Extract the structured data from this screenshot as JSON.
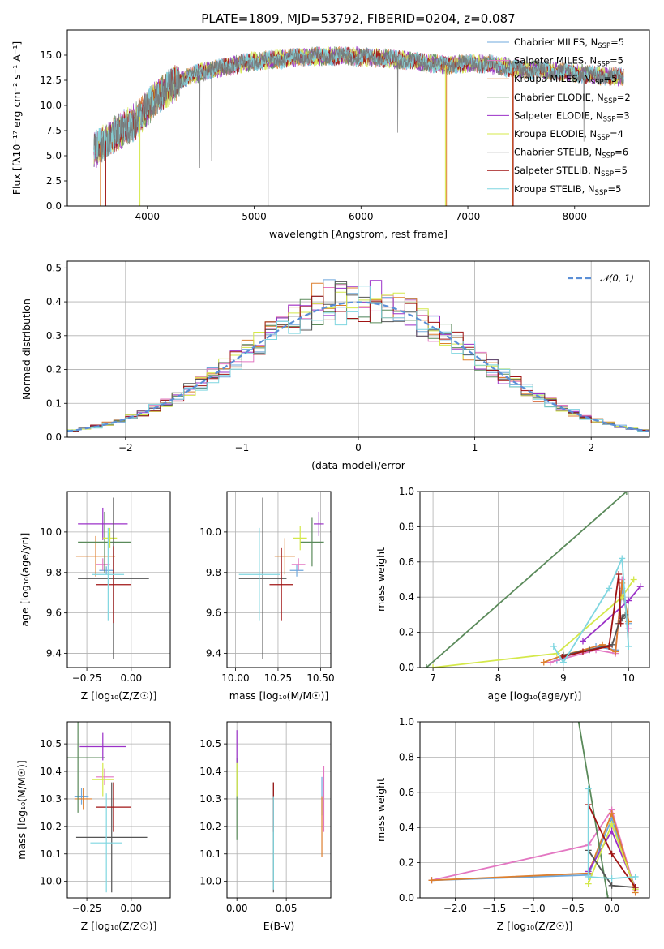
{
  "colors": {
    "Chabrier MILES": "#6fa8dc",
    "Salpeter MILES": "#e377c2",
    "Kroupa MILES": "#dd7f2e",
    "Chabrier ELODIE": "#5a8a5a",
    "Salpeter ELODIE": "#9b30c8",
    "Kroupa ELODIE": "#d4e84a",
    "Chabrier STELIB": "#555555",
    "Salpeter STELIB": "#a01414",
    "Kroupa STELIB": "#7fd6e0",
    "gaussian": "#5b8fd6"
  },
  "chart_data": [
    {
      "id": "spectrum",
      "type": "line",
      "title": "PLATE=1809, MJD=53792, FIBERID=0204, z=0.087",
      "xlabel": "wavelength [Angstrom, rest frame]",
      "ylabel": "Flux [fλ10⁻¹⁷ erg cm⁻² s⁻¹ A⁻¹]",
      "xlim": [
        3250,
        8700
      ],
      "ylim": [
        0,
        17.5
      ],
      "xticks": [
        "4000",
        "5000",
        "6000",
        "7000",
        "8000"
      ],
      "yticks": [
        "0.0",
        "2.5",
        "5.0",
        "7.5",
        "10.0",
        "12.5",
        "15.0"
      ],
      "continuum_x": [
        3500,
        3700,
        3900,
        4100,
        4300,
        4500,
        4800,
        5000,
        5300,
        5600,
        5900,
        6200,
        6500,
        6800,
        7000,
        7200,
        7500,
        7800,
        8000,
        8200,
        8500
      ],
      "continuum_y": [
        5.5,
        7.2,
        8.5,
        11.0,
        12.5,
        13.3,
        14.0,
        14.4,
        14.7,
        14.9,
        14.9,
        14.7,
        14.4,
        14.0,
        14.2,
        14.1,
        13.6,
        13.4,
        13.2,
        13.0,
        12.8
      ],
      "legend": [
        {
          "label": "Chabrier MILES, N",
          "sub": "SSP",
          "n": "=5"
        },
        {
          "label": "Salpeter MILES, N",
          "sub": "SSP",
          "n": "=5"
        },
        {
          "label": "Kroupa MILES, N",
          "sub": "SSP",
          "n": "=5"
        },
        {
          "label": "Chabrier ELODIE, N",
          "sub": "SSP",
          "n": "=2"
        },
        {
          "label": "Salpeter ELODIE, N",
          "sub": "SSP",
          "n": "=3"
        },
        {
          "label": "Kroupa ELODIE, N",
          "sub": "SSP",
          "n": "=4"
        },
        {
          "label": "Chabrier STELIB, N",
          "sub": "SSP",
          "n": "=6"
        },
        {
          "label": "Salpeter STELIB, N",
          "sub": "SSP",
          "n": "=5"
        },
        {
          "label": "Kroupa STELIB, N",
          "sub": "SSP",
          "n": "=5"
        }
      ],
      "legend_placement": "right"
    },
    {
      "id": "residuals",
      "type": "histogram",
      "xlabel": "(data-model)/error",
      "ylabel": "Normed distribution",
      "xlim": [
        -2.5,
        2.5
      ],
      "ylim": [
        0,
        0.52
      ],
      "xticks": [
        "−2",
        "−1",
        "0",
        "1",
        "2"
      ],
      "yticks": [
        "0.0",
        "0.1",
        "0.2",
        "0.3",
        "0.4",
        "0.5"
      ],
      "bin_width": 0.1,
      "legend": "𝒩(0, 1)",
      "grid": true
    },
    {
      "id": "age_vs_Z",
      "type": "errorbar",
      "xlabel": "Z [log₁₀(Z/Z☉)]",
      "ylabel": "age  [log₁₀(age/yr)]",
      "xlim": [
        -0.36,
        0.22
      ],
      "ylim": [
        9.33,
        10.2
      ],
      "xticks": [
        "−0.25",
        "0.00"
      ],
      "yticks": [
        "9.4",
        "9.6",
        "9.8",
        "10.0"
      ],
      "points": [
        {
          "model": "Chabrier MILES",
          "x": -0.14,
          "y": 9.81,
          "xe": 0.04,
          "ye": 0.02
        },
        {
          "model": "Salpeter MILES",
          "x": -0.16,
          "y": 9.84,
          "xe": 0.04,
          "ye": 0.03
        },
        {
          "model": "Kroupa MILES",
          "x": -0.2,
          "y": 9.88,
          "xe": 0.11,
          "ye": 0.1
        },
        {
          "model": "Chabrier ELODIE",
          "x": -0.15,
          "y": 9.95,
          "xe": 0.15,
          "ye": 0.15
        },
        {
          "model": "Salpeter ELODIE",
          "x": -0.16,
          "y": 10.04,
          "xe": 0.14,
          "ye": 0.08
        },
        {
          "model": "Kroupa ELODIE",
          "x": -0.12,
          "y": 9.97,
          "xe": 0.04,
          "ye": 0.05
        },
        {
          "model": "Chabrier STELIB",
          "x": -0.1,
          "y": 9.77,
          "xe": 0.2,
          "ye": 0.4
        },
        {
          "model": "Salpeter STELIB",
          "x": -0.1,
          "y": 9.74,
          "xe": 0.1,
          "ye": 0.19
        },
        {
          "model": "Kroupa STELIB",
          "x": -0.13,
          "y": 9.79,
          "xe": 0.09,
          "ye": 0.23
        }
      ]
    },
    {
      "id": "age_vs_mass",
      "type": "errorbar",
      "xlabel": "mass [log₁₀(M/M☉)]",
      "ylabel": "",
      "xlim": [
        9.95,
        10.56
      ],
      "ylim": [
        9.33,
        10.2
      ],
      "xticks": [
        "10.00",
        "10.25",
        "10.50"
      ],
      "yticks": [
        "9.4",
        "9.6",
        "9.8",
        "10.0"
      ],
      "points": [
        {
          "model": "Chabrier MILES",
          "x": 10.36,
          "y": 9.81,
          "xe": 0.04,
          "ye": 0.03
        },
        {
          "model": "Salpeter MILES",
          "x": 10.37,
          "y": 9.84,
          "xe": 0.04,
          "ye": 0.03
        },
        {
          "model": "Kroupa MILES",
          "x": 10.29,
          "y": 9.88,
          "xe": 0.06,
          "ye": 0.09
        },
        {
          "model": "Chabrier ELODIE",
          "x": 10.45,
          "y": 9.95,
          "xe": 0.07,
          "ye": 0.12
        },
        {
          "model": "Salpeter ELODIE",
          "x": 10.49,
          "y": 10.04,
          "xe": 0.03,
          "ye": 0.06
        },
        {
          "model": "Kroupa ELODIE",
          "x": 10.38,
          "y": 9.97,
          "xe": 0.04,
          "ye": 0.06
        },
        {
          "model": "Chabrier STELIB",
          "x": 10.16,
          "y": 9.77,
          "xe": 0.14,
          "ye": 0.4
        },
        {
          "model": "Salpeter STELIB",
          "x": 10.27,
          "y": 9.74,
          "xe": 0.07,
          "ye": 0.18
        },
        {
          "model": "Kroupa STELIB",
          "x": 10.14,
          "y": 9.79,
          "xe": 0.12,
          "ye": 0.23
        }
      ]
    },
    {
      "id": "mass_weight_vs_age",
      "type": "line",
      "xlabel": "age  [log₁₀(age/yr)]",
      "ylabel": "mass weight",
      "xlim": [
        6.8,
        10.32
      ],
      "ylim": [
        0,
        1.0
      ],
      "xticks": [
        "7",
        "8",
        "9",
        "10"
      ],
      "yticks": [
        "0.0",
        "0.2",
        "0.4",
        "0.6",
        "0.8",
        "1.0"
      ],
      "series": [
        {
          "model": "Chabrier MILES",
          "x": [
            8.9,
            9.0,
            9.5,
            9.8,
            9.9,
            10.0
          ],
          "y": [
            0.04,
            0.06,
            0.12,
            0.1,
            0.45,
            0.25
          ]
        },
        {
          "model": "Salpeter MILES",
          "x": [
            8.8,
            9.0,
            9.5,
            9.8,
            9.9,
            10.0
          ],
          "y": [
            0.03,
            0.05,
            0.1,
            0.08,
            0.5,
            0.22
          ]
        },
        {
          "model": "Kroupa MILES",
          "x": [
            8.7,
            9.0,
            9.6,
            9.8,
            9.9,
            10.0
          ],
          "y": [
            0.03,
            0.07,
            0.13,
            0.09,
            0.48,
            0.26
          ]
        },
        {
          "model": "Chabrier ELODIE",
          "x": [
            6.9,
            9.97
          ],
          "y": [
            0.0,
            1.0
          ]
        },
        {
          "model": "Salpeter ELODIE",
          "x": [
            9.3,
            10.0,
            10.18
          ],
          "y": [
            0.15,
            0.38,
            0.46
          ]
        },
        {
          "model": "Kroupa ELODIE",
          "x": [
            7.0,
            8.9,
            9.9,
            10.08
          ],
          "y": [
            0.0,
            0.08,
            0.4,
            0.5
          ]
        },
        {
          "model": "Chabrier STELIB",
          "x": [
            9.0,
            9.4,
            9.75,
            9.85,
            9.9,
            9.95
          ],
          "y": [
            0.07,
            0.1,
            0.13,
            0.25,
            0.28,
            0.3
          ]
        },
        {
          "model": "Salpeter STELIB",
          "x": [
            8.98,
            9.3,
            9.7,
            9.85,
            9.88
          ],
          "y": [
            0.06,
            0.09,
            0.12,
            0.53,
            0.25
          ]
        },
        {
          "model": "Kroupa STELIB",
          "x": [
            8.85,
            9.0,
            9.7,
            9.9,
            10.0
          ],
          "y": [
            0.12,
            0.03,
            0.45,
            0.62,
            0.12
          ]
        }
      ]
    },
    {
      "id": "mass_vs_Z",
      "type": "errorbar",
      "xlabel": "Z [log₁₀(Z/Z☉)]",
      "ylabel": "mass [log₁₀(M/M☉)]",
      "xlim": [
        -0.36,
        0.22
      ],
      "ylim": [
        9.94,
        10.58
      ],
      "xticks": [
        "−0.25",
        "0.00"
      ],
      "yticks": [
        "10.0",
        "10.1",
        "10.2",
        "10.3",
        "10.4",
        "10.5"
      ],
      "points": [
        {
          "model": "Chabrier MILES",
          "x": -0.28,
          "y": 10.31,
          "xe": 0.04,
          "ye": 0.03
        },
        {
          "model": "Salpeter MILES",
          "x": -0.15,
          "y": 10.38,
          "xe": 0.05,
          "ye": 0.03
        },
        {
          "model": "Kroupa MILES",
          "x": -0.27,
          "y": 10.3,
          "xe": 0.05,
          "ye": 0.04
        },
        {
          "model": "Chabrier ELODIE",
          "x": -0.3,
          "y": 10.45,
          "xe": 0.15,
          "ye": 0.2
        },
        {
          "model": "Salpeter ELODIE",
          "x": -0.16,
          "y": 10.49,
          "xe": 0.13,
          "ye": 0.05
        },
        {
          "model": "Kroupa ELODIE",
          "x": -0.16,
          "y": 10.37,
          "xe": 0.06,
          "ye": 0.06
        },
        {
          "model": "Chabrier STELIB",
          "x": -0.11,
          "y": 10.16,
          "xe": 0.2,
          "ye": 0.2
        },
        {
          "model": "Salpeter STELIB",
          "x": -0.1,
          "y": 10.27,
          "xe": 0.1,
          "ye": 0.09
        },
        {
          "model": "Kroupa STELIB",
          "x": -0.14,
          "y": 10.14,
          "xe": 0.09,
          "ye": 0.18
        }
      ]
    },
    {
      "id": "mass_vs_ebv",
      "type": "errorbar",
      "xlabel": "E(B-V)",
      "ylabel": "",
      "xlim": [
        -0.01,
        0.095
      ],
      "ylim": [
        9.94,
        10.58
      ],
      "xticks": [
        "0.00",
        "0.05"
      ],
      "yticks": [
        "10.0",
        "10.1",
        "10.2",
        "10.3",
        "10.4",
        "10.5"
      ],
      "points": [
        {
          "model": "Chabrier MILES",
          "x": 0.086,
          "y": 10.31,
          "xe": 0,
          "ye": 0.07
        },
        {
          "model": "Salpeter MILES",
          "x": 0.088,
          "y": 10.3,
          "xe": 0,
          "ye": 0.12
        },
        {
          "model": "Kroupa MILES",
          "x": 0.086,
          "y": 10.2,
          "xe": 0,
          "ye": 0.11
        },
        {
          "model": "Chabrier ELODIE",
          "x": 0.0,
          "y": 10.3,
          "xe": 0,
          "ye": 0.15
        },
        {
          "model": "Salpeter ELODIE",
          "x": 0.0,
          "y": 10.49,
          "xe": 0,
          "ye": 0.06
        },
        {
          "model": "Kroupa ELODIE",
          "x": 0.0,
          "y": 10.37,
          "xe": 0,
          "ye": 0.06
        },
        {
          "model": "Chabrier STELIB",
          "x": 0.037,
          "y": 10.16,
          "xe": 0,
          "ye": 0.2
        },
        {
          "model": "Salpeter STELIB",
          "x": 0.037,
          "y": 10.27,
          "xe": 0,
          "ye": 0.09
        },
        {
          "model": "Kroupa STELIB",
          "x": 0.037,
          "y": 10.14,
          "xe": 0,
          "ye": 0.17
        }
      ]
    },
    {
      "id": "mass_weight_vs_Z",
      "type": "line",
      "xlabel": "Z [log₁₀(Z/Z☉)]",
      "ylabel": "mass weight",
      "xlim": [
        -2.45,
        0.48
      ],
      "ylim": [
        0,
        1.0
      ],
      "xticks": [
        "−2.0",
        "−1.5",
        "−1.0",
        "−0.5",
        "0.0"
      ],
      "yticks": [
        "0.0",
        "0.2",
        "0.4",
        "0.6",
        "0.8",
        "1.0"
      ],
      "series": [
        {
          "model": "Chabrier MILES",
          "x": [
            -2.3,
            -0.3,
            0.0,
            0.3
          ],
          "y": [
            0.1,
            0.13,
            0.45,
            0.05
          ]
        },
        {
          "model": "Salpeter MILES",
          "x": [
            -2.3,
            -0.3,
            0.0,
            0.3
          ],
          "y": [
            0.1,
            0.3,
            0.5,
            0.04
          ]
        },
        {
          "model": "Kroupa MILES",
          "x": [
            -2.3,
            -0.3,
            0.0,
            0.3
          ],
          "y": [
            0.1,
            0.14,
            0.48,
            0.03
          ]
        },
        {
          "model": "Chabrier ELODIE",
          "x": [
            -0.43,
            -0.05
          ],
          "y": [
            1.02,
            0.0
          ]
        },
        {
          "model": "Salpeter ELODIE",
          "x": [
            -0.3,
            0.0,
            0.3
          ],
          "y": [
            0.15,
            0.38,
            0.06
          ]
        },
        {
          "model": "Kroupa ELODIE",
          "x": [
            -0.3,
            0.0,
            0.3
          ],
          "y": [
            0.08,
            0.42,
            0.05
          ]
        },
        {
          "model": "Chabrier STELIB",
          "x": [
            -0.3,
            0.0,
            0.3
          ],
          "y": [
            0.27,
            0.07,
            0.06
          ]
        },
        {
          "model": "Salpeter STELIB",
          "x": [
            -0.3,
            0.0,
            0.3
          ],
          "y": [
            0.53,
            0.25,
            0.06
          ]
        },
        {
          "model": "Kroupa STELIB",
          "x": [
            -0.3,
            -0.3,
            0.0,
            0.3
          ],
          "y": [
            0.62,
            0.12,
            0.11,
            0.12
          ]
        }
      ]
    }
  ]
}
